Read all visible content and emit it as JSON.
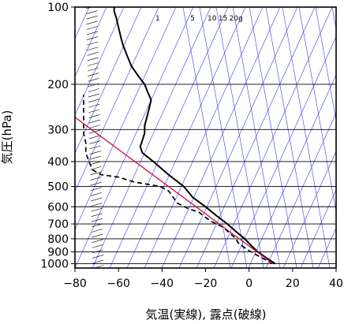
{
  "chart_data": {
    "type": "line",
    "title": "",
    "xlabel": "気温(実線), 露点(破線)",
    "ylabel": "気圧(hPa)",
    "x_range": [
      -80,
      40
    ],
    "p_range": [
      100,
      1040
    ],
    "y_scale": "log",
    "x_ticks": [
      {
        "value": -80,
        "label": "−80"
      },
      {
        "value": -60,
        "label": "−60"
      },
      {
        "value": -40,
        "label": "−40"
      },
      {
        "value": -20,
        "label": "−20"
      },
      {
        "value": 0,
        "label": "0"
      },
      {
        "value": 20,
        "label": "20"
      },
      {
        "value": 40,
        "label": "40"
      }
    ],
    "y_ticks": [
      {
        "value": 100,
        "label": "100"
      },
      {
        "value": 200,
        "label": "200"
      },
      {
        "value": 300,
        "label": "300"
      },
      {
        "value": 400,
        "label": "400"
      },
      {
        "value": 500,
        "label": "500"
      },
      {
        "value": 600,
        "label": "600"
      },
      {
        "value": 700,
        "label": "700"
      },
      {
        "value": 800,
        "label": "800"
      },
      {
        "value": 900,
        "label": "900"
      },
      {
        "value": 1000,
        "label": "1000"
      }
    ],
    "mixing_ratio_labels": [
      {
        "text": "1",
        "temp": -42
      },
      {
        "text": "5",
        "temp": -26
      },
      {
        "text": "10",
        "temp": -17
      },
      {
        "text": "15",
        "temp": -12
      },
      {
        "text": "20g",
        "temp": -6
      }
    ],
    "colors": {
      "guide": "#3a3ae6",
      "parcel": "#c8103c",
      "profile": "#000000"
    },
    "series": [
      {
        "style": "solid",
        "points": [
          [
            12,
            1000
          ],
          [
            8,
            950
          ],
          [
            4,
            900
          ],
          [
            1,
            850
          ],
          [
            -2,
            800
          ],
          [
            -6,
            750
          ],
          [
            -10,
            700
          ],
          [
            -15,
            650
          ],
          [
            -20,
            600
          ],
          [
            -26,
            550
          ],
          [
            -30,
            500
          ],
          [
            -37,
            450
          ],
          [
            -44,
            400
          ],
          [
            -49,
            370
          ],
          [
            -50,
            350
          ],
          [
            -49,
            330
          ],
          [
            -48,
            310
          ],
          [
            -48,
            290
          ],
          [
            -47,
            270
          ],
          [
            -46,
            250
          ],
          [
            -45,
            230
          ],
          [
            -47,
            210
          ],
          [
            -48,
            200
          ],
          [
            -51,
            185
          ],
          [
            -54,
            170
          ],
          [
            -56,
            155
          ],
          [
            -58,
            140
          ],
          [
            -59,
            130
          ],
          [
            -60,
            120
          ],
          [
            -61,
            110
          ],
          [
            -62,
            104
          ],
          [
            -62,
            100
          ]
        ]
      },
      {
        "style": "dashed",
        "points": [
          [
            11,
            1000
          ],
          [
            7,
            960
          ],
          [
            3,
            920
          ],
          [
            -1,
            880
          ],
          [
            -5,
            830
          ],
          [
            -6,
            800
          ],
          [
            -12,
            720
          ],
          [
            -18,
            680
          ],
          [
            -23,
            630
          ],
          [
            -28,
            610
          ],
          [
            -33,
            580
          ],
          [
            -37,
            520
          ],
          [
            -41,
            500
          ],
          [
            -53,
            480
          ],
          [
            -60,
            460
          ],
          [
            -68,
            450
          ],
          [
            -72,
            430
          ],
          [
            -73,
            410
          ],
          [
            -74,
            390
          ],
          [
            -75,
            370
          ],
          [
            -75,
            340
          ],
          [
            -76,
            310
          ],
          [
            -76,
            280
          ],
          [
            -76,
            260
          ],
          [
            -76,
            240
          ],
          [
            -76,
            220
          ]
        ]
      },
      {
        "style": "parcel",
        "points": [
          [
            11,
            1000
          ],
          [
            -85,
            250
          ]
        ]
      }
    ]
  }
}
